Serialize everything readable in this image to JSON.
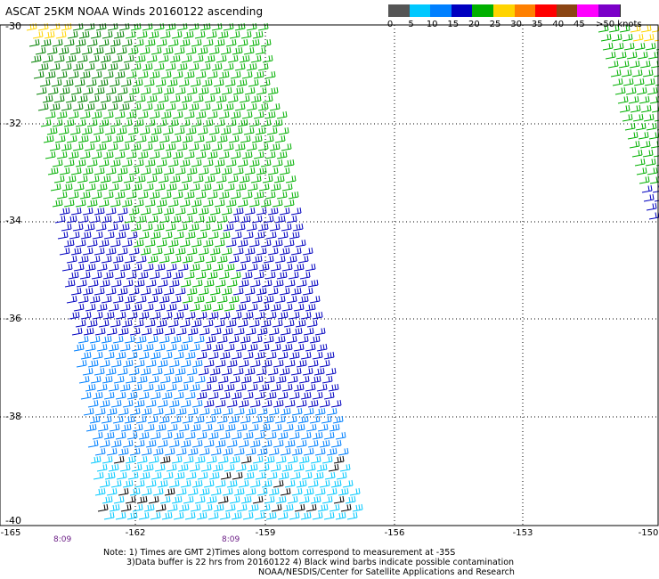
{
  "title": "ASCAT 25KM NOAA Winds 20160122 ascending",
  "colorbar": {
    "ticks": [
      "0",
      "5",
      "10",
      "15",
      "20",
      "25",
      "30",
      "35",
      "40",
      "45"
    ],
    "units_label": ">50 knots",
    "colors": [
      "#555555",
      "#00c8ff",
      "#0080ff",
      "#0000c0",
      "#00b000",
      "#ffd400",
      "#ff8000",
      "#ff0000",
      "#8b4513",
      "#ff00ff",
      "#7b00c8"
    ]
  },
  "axes": {
    "y_labels": [
      "-30",
      "-32",
      "-34",
      "-36",
      "-38",
      "-40"
    ],
    "x_labels": [
      "-165",
      "-162",
      "-159",
      "-156",
      "-153",
      "-150"
    ]
  },
  "swath_times": [
    "8:09",
    "8:09"
  ],
  "notes": {
    "line1": "Note: 1) Times are GMT 2)Times along bottom correspond to measurement at -35S",
    "line2": "3)Data buffer is 22 hrs from 20160122 4) Black wind barbs indicate possible contamination",
    "line3": "NOAA/NESDIS/Center for Satellite Applications and Research"
  }
}
